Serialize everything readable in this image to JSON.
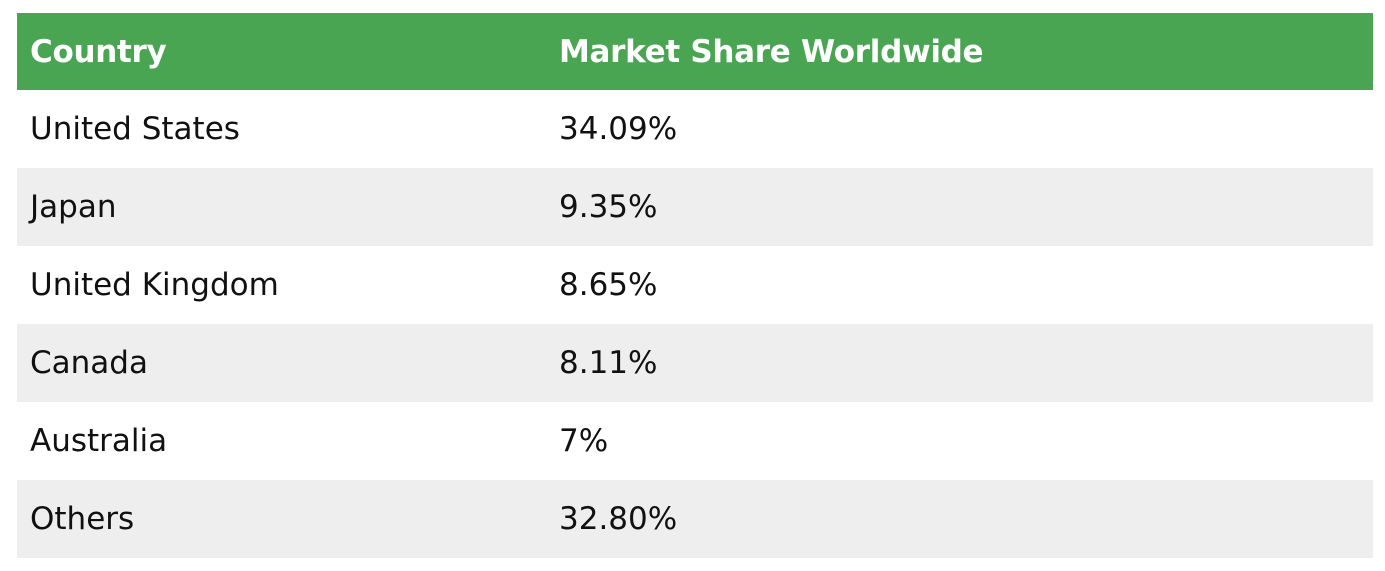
{
  "colors": {
    "header_bg": "#4aa553",
    "header_text": "#ffffff",
    "row_alt_bg": "#eeeeee",
    "row_bg": "#ffffff",
    "text": "#111111"
  },
  "chart_data": {
    "type": "table",
    "columns": [
      "Country",
      "Market Share Worldwide"
    ],
    "rows": [
      [
        "United States",
        "34.09%"
      ],
      [
        "Japan",
        "9.35%"
      ],
      [
        "United Kingdom",
        "8.65%"
      ],
      [
        "Canada",
        "8.11%"
      ],
      [
        "Australia",
        "7%"
      ],
      [
        "Others",
        "32.80%"
      ]
    ]
  }
}
